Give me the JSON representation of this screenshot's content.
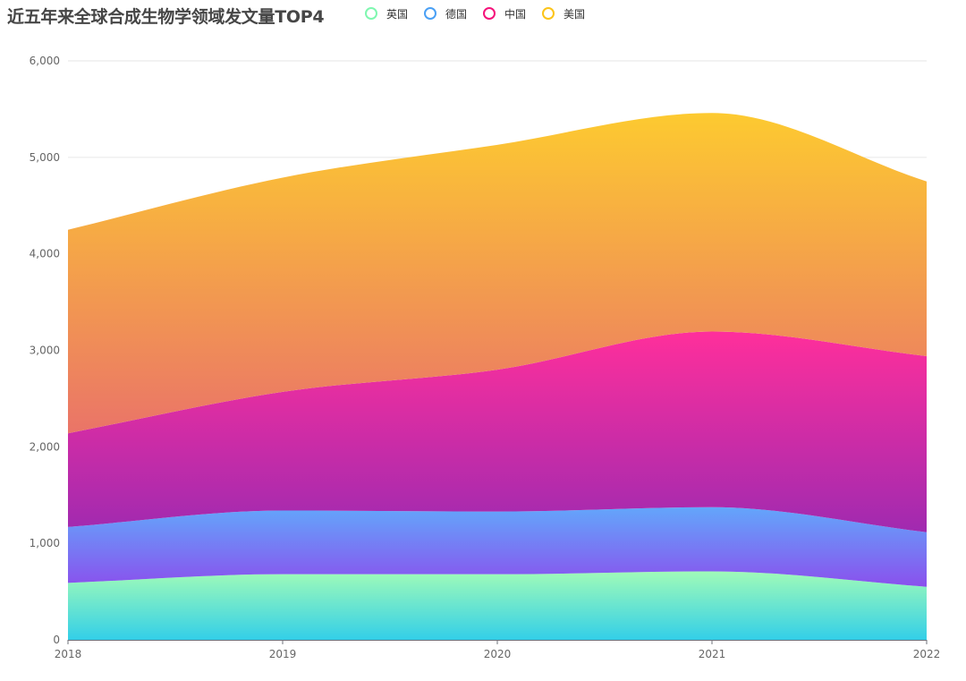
{
  "title": "近五年来全球合成生物学领域发文量TOP4",
  "legend": [
    {
      "name": "英国",
      "color": "#7ff7b0"
    },
    {
      "name": "德国",
      "color": "#4aa0f5"
    },
    {
      "name": "中国",
      "color": "#f5127a"
    },
    {
      "name": "美国",
      "color": "#fcc419"
    }
  ],
  "chart_data": {
    "type": "area",
    "stacked": true,
    "smooth": true,
    "categories": [
      "2018",
      "2019",
      "2020",
      "2021",
      "2022"
    ],
    "ylim": [
      0,
      6000
    ],
    "yticks": [
      "0",
      "1,000",
      "2,000",
      "3,000",
      "4,000",
      "5,000",
      "6,000"
    ],
    "grid": "horizontal",
    "legend_position": "top",
    "series": [
      {
        "name": "英国",
        "values": [
          590,
          680,
          680,
          710,
          550
        ],
        "gradient": [
          "#a0fbb8",
          "#33cfe8"
        ]
      },
      {
        "name": "德国",
        "values": [
          580,
          660,
          650,
          665,
          565
        ],
        "gradient": [
          "#63a6fb",
          "#8a50ed"
        ]
      },
      {
        "name": "中国",
        "values": [
          970,
          1230,
          1470,
          1820,
          1825
        ],
        "gradient": [
          "#ff2f9b",
          "#a02ab0"
        ]
      },
      {
        "name": "美国",
        "values": [
          2110,
          2220,
          2330,
          2265,
          1810
        ],
        "gradient": [
          "#fdca30",
          "#ea7468"
        ]
      }
    ]
  }
}
